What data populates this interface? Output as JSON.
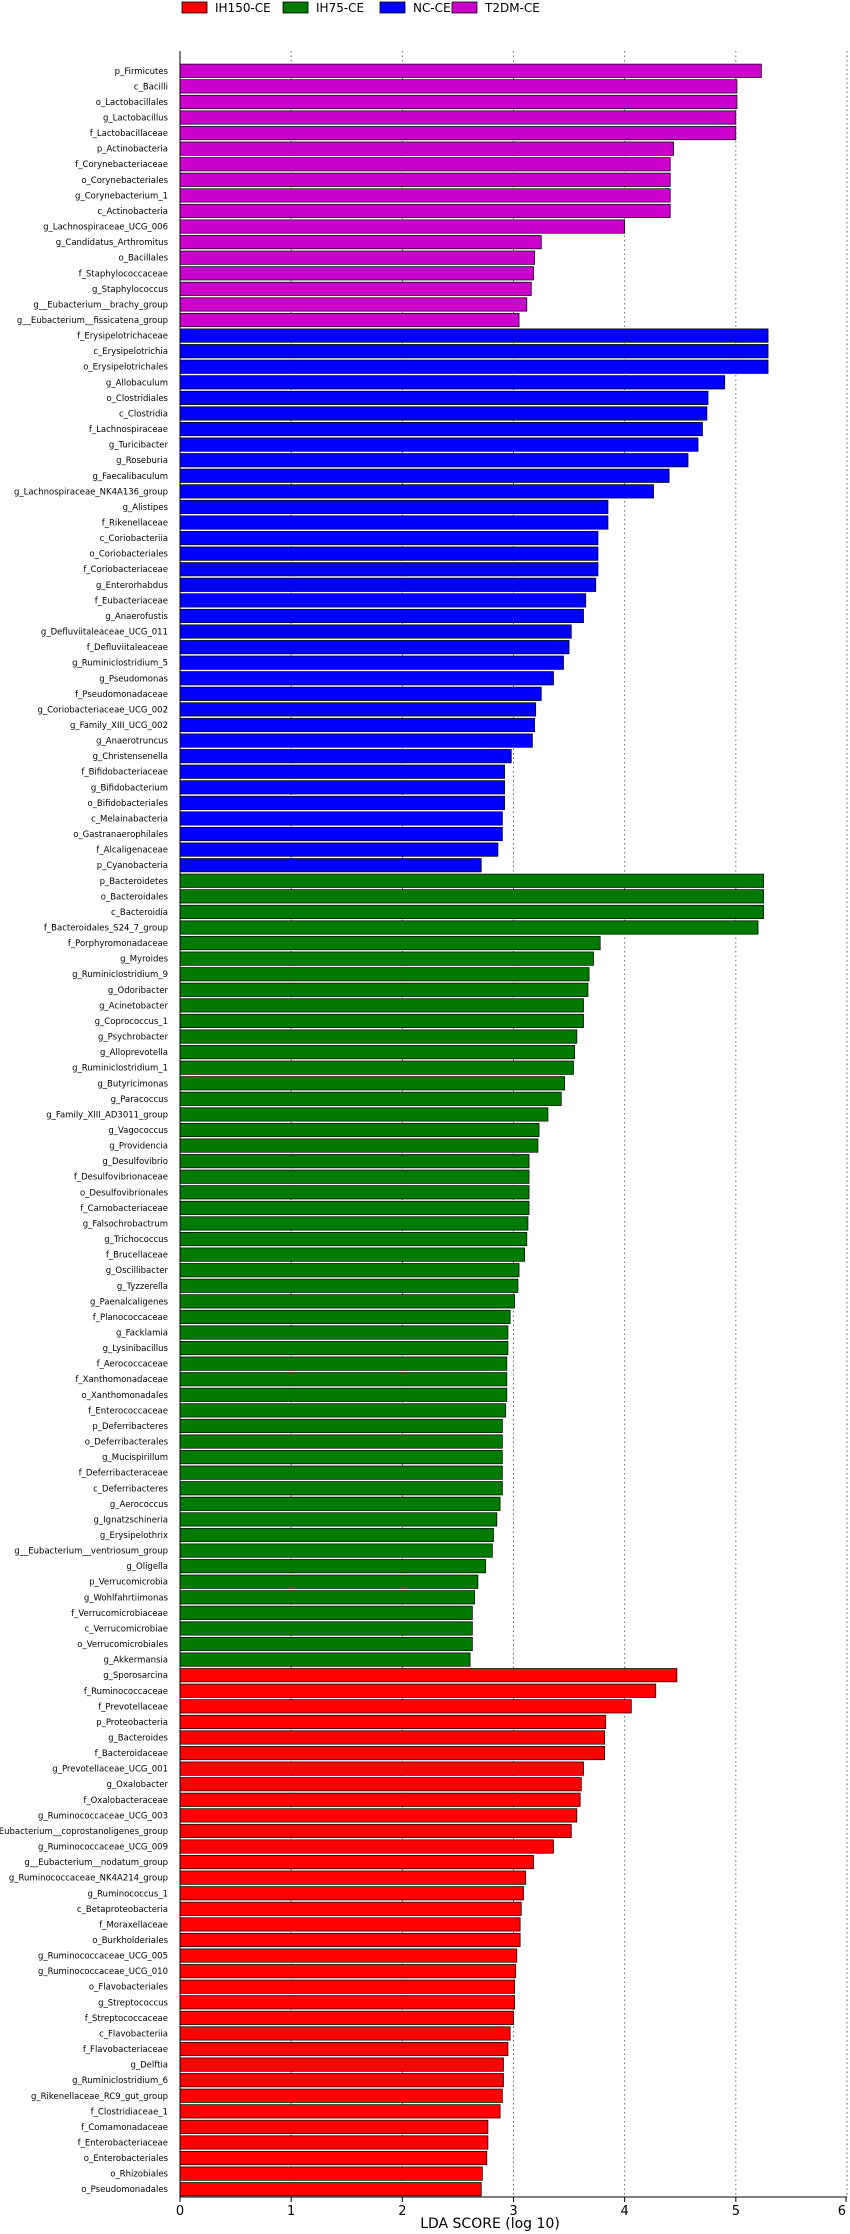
{
  "chart_data": {
    "type": "bar",
    "orientation": "horizontal",
    "xlabel": "LDA SCORE (log 10)",
    "xlim": [
      0,
      6
    ],
    "xticks": [
      "0",
      "1",
      "2",
      "3",
      "4",
      "5",
      "6"
    ],
    "grid": "vertical-dotted",
    "legend_position": "top",
    "legend": [
      {
        "name": "IH150-CE",
        "color": "#ff0000"
      },
      {
        "name": "IH75-CE",
        "color": "#007a00"
      },
      {
        "name": "NC-CE",
        "color": "#0000ff"
      },
      {
        "name": "T2DM-CE",
        "color": "#cc00cc"
      }
    ],
    "groups": [
      {
        "name": "T2DM-CE",
        "color": "#cc00cc",
        "bars": [
          {
            "label": "p_Firmicutes",
            "value": 5.23
          },
          {
            "label": "c_Bacilli",
            "value": 5.01
          },
          {
            "label": "o_Lactobacillales",
            "value": 5.01
          },
          {
            "label": "g_Lactobacillus",
            "value": 5.0
          },
          {
            "label": "f_Lactobacillaceae",
            "value": 5.0
          },
          {
            "label": "p_Actinobacteria",
            "value": 4.44
          },
          {
            "label": "f_Corynebacteriaceae",
            "value": 4.41
          },
          {
            "label": "o_Corynebacteriales",
            "value": 4.41
          },
          {
            "label": "g_Corynebacterium_1",
            "value": 4.41
          },
          {
            "label": "c_Actinobacteria",
            "value": 4.41
          },
          {
            "label": "g_Lachnospiraceae_UCG_006",
            "value": 4.0
          },
          {
            "label": "g_Candidatus_Arthromitus",
            "value": 3.25
          },
          {
            "label": "o_Bacillales",
            "value": 3.19
          },
          {
            "label": "f_Staphylococcaceae",
            "value": 3.18
          },
          {
            "label": "g_Staphylococcus",
            "value": 3.16
          },
          {
            "label": "g__Eubacterium__brachy_group",
            "value": 3.12
          },
          {
            "label": "g__Eubacterium__fissicatena_group",
            "value": 3.05
          }
        ]
      },
      {
        "name": "NC-CE",
        "color": "#0000ff",
        "bars": [
          {
            "label": "f_Erysipelotrichaceae",
            "value": 5.29
          },
          {
            "label": "c_Erysipelotrichia",
            "value": 5.29
          },
          {
            "label": "o_Erysipelotrichales",
            "value": 5.29
          },
          {
            "label": "g_Allobaculum",
            "value": 4.9
          },
          {
            "label": "o_Clostridiales",
            "value": 4.75
          },
          {
            "label": "c_Clostridia",
            "value": 4.74
          },
          {
            "label": "f_Lachnospiraceae",
            "value": 4.7
          },
          {
            "label": "g_Turicibacter",
            "value": 4.66
          },
          {
            "label": "g_Roseburia",
            "value": 4.57
          },
          {
            "label": "g_Faecalibaculum",
            "value": 4.4
          },
          {
            "label": "g_Lachnospiraceae_NK4A136_group",
            "value": 4.26
          },
          {
            "label": "g_Alistipes",
            "value": 3.85
          },
          {
            "label": "f_Rikenellaceae",
            "value": 3.85
          },
          {
            "label": "c_Coriobacteriia",
            "value": 3.76
          },
          {
            "label": "o_Coriobacteriales",
            "value": 3.76
          },
          {
            "label": "f_Coriobacteriaceae",
            "value": 3.76
          },
          {
            "label": "g_Enterorhabdus",
            "value": 3.74
          },
          {
            "label": "f_Eubacteriaceae",
            "value": 3.65
          },
          {
            "label": "g_Anaerofustis",
            "value": 3.63
          },
          {
            "label": "g_Defluviitaleaceae_UCG_011",
            "value": 3.52
          },
          {
            "label": "f_Defluviitaleaceae",
            "value": 3.5
          },
          {
            "label": "g_Ruminiclostridium_5",
            "value": 3.45
          },
          {
            "label": "g_Pseudomonas",
            "value": 3.36
          },
          {
            "label": "f_Pseudomonadaceae",
            "value": 3.25
          },
          {
            "label": "g_Coriobacteriaceae_UCG_002",
            "value": 3.2
          },
          {
            "label": "g_Family_XIII_UCG_002",
            "value": 3.19
          },
          {
            "label": "g_Anaerotruncus",
            "value": 3.17
          },
          {
            "label": "g_Christensenella",
            "value": 2.98
          },
          {
            "label": "f_Bifidobacteriaceae",
            "value": 2.92
          },
          {
            "label": "g_Bifidobacterium",
            "value": 2.92
          },
          {
            "label": "o_Bifidobacteriales",
            "value": 2.92
          },
          {
            "label": "c_Melainabacteria",
            "value": 2.9
          },
          {
            "label": "o_Gastranaerophilales",
            "value": 2.9
          },
          {
            "label": "f_Alcaligenaceae",
            "value": 2.86
          },
          {
            "label": "p_Cyanobacteria",
            "value": 2.71
          }
        ]
      },
      {
        "name": "IH75-CE",
        "color": "#007a00",
        "bars": [
          {
            "label": "p_Bacteroidetes",
            "value": 5.25
          },
          {
            "label": "o_Bacteroidales",
            "value": 5.25
          },
          {
            "label": "c_Bacteroidia",
            "value": 5.25
          },
          {
            "label": "f_Bacteroidales_S24_7_group",
            "value": 5.2
          },
          {
            "label": "f_Porphyromonadaceae",
            "value": 3.78
          },
          {
            "label": "g_Myroides",
            "value": 3.72
          },
          {
            "label": "g_Ruminiclostridium_9",
            "value": 3.68
          },
          {
            "label": "g_Odoribacter",
            "value": 3.67
          },
          {
            "label": "g_Acinetobacter",
            "value": 3.63
          },
          {
            "label": "g_Coprococcus_1",
            "value": 3.63
          },
          {
            "label": "g_Psychrobacter",
            "value": 3.57
          },
          {
            "label": "g_Alloprevotella",
            "value": 3.55
          },
          {
            "label": "g_Ruminiclostridium_1",
            "value": 3.54
          },
          {
            "label": "g_Butyricimonas",
            "value": 3.46
          },
          {
            "label": "g_Paracoccus",
            "value": 3.43
          },
          {
            "label": "g_Family_XIII_AD3011_group",
            "value": 3.31
          },
          {
            "label": "g_Vagococcus",
            "value": 3.23
          },
          {
            "label": "g_Providencia",
            "value": 3.22
          },
          {
            "label": "g_Desulfovibrio",
            "value": 3.14
          },
          {
            "label": "f_Desulfovibrionaceae",
            "value": 3.14
          },
          {
            "label": "o_Desulfovibrionales",
            "value": 3.14
          },
          {
            "label": "f_Carnobacteriaceae",
            "value": 3.14
          },
          {
            "label": "g_Falsochrobactrum",
            "value": 3.13
          },
          {
            "label": "g_Trichococcus",
            "value": 3.12
          },
          {
            "label": "f_Brucellaceae",
            "value": 3.1
          },
          {
            "label": "g_Oscillibacter",
            "value": 3.05
          },
          {
            "label": "g_Tyzzerella",
            "value": 3.04
          },
          {
            "label": "g_Paenalcaligenes",
            "value": 3.01
          },
          {
            "label": "f_Planococcaceae",
            "value": 2.97
          },
          {
            "label": "g_Facklamia",
            "value": 2.95
          },
          {
            "label": "g_Lysinibacillus",
            "value": 2.95
          },
          {
            "label": "f_Aerococcaceae",
            "value": 2.94
          },
          {
            "label": "f_Xanthomonadaceae",
            "value": 2.94
          },
          {
            "label": "o_Xanthomonadales",
            "value": 2.94
          },
          {
            "label": "f_Enterococcaceae",
            "value": 2.93
          },
          {
            "label": "p_Deferribacteres",
            "value": 2.9
          },
          {
            "label": "o_Deferribacterales",
            "value": 2.9
          },
          {
            "label": "g_Mucispirillum",
            "value": 2.9
          },
          {
            "label": "f_Deferribacteraceae",
            "value": 2.9
          },
          {
            "label": "c_Deferribacteres",
            "value": 2.9
          },
          {
            "label": "g_Aerococcus",
            "value": 2.88
          },
          {
            "label": "g_Ignatzschineria",
            "value": 2.85
          },
          {
            "label": "g_Erysipelothrix",
            "value": 2.82
          },
          {
            "label": "g__Eubacterium__ventriosum_group",
            "value": 2.81
          },
          {
            "label": "g_Oligella",
            "value": 2.75
          },
          {
            "label": "p_Verrucomicrobia",
            "value": 2.68
          },
          {
            "label": "g_Wohlfahrtiimonas",
            "value": 2.65
          },
          {
            "label": "f_Verrucomicrobiaceae",
            "value": 2.63
          },
          {
            "label": "c_Verrucomicrobiae",
            "value": 2.63
          },
          {
            "label": "o_Verrucomicrobiales",
            "value": 2.63
          },
          {
            "label": "g_Akkermansia",
            "value": 2.61
          }
        ]
      },
      {
        "name": "IH150-CE",
        "color": "#ff0000",
        "bars": [
          {
            "label": "g_Sporosarcina",
            "value": 4.47
          },
          {
            "label": "f_Ruminococcaceae",
            "value": 4.28
          },
          {
            "label": "f_Prevotellaceae",
            "value": 4.06
          },
          {
            "label": "p_Proteobacteria",
            "value": 3.83
          },
          {
            "label": "g_Bacteroides",
            "value": 3.82
          },
          {
            "label": "f_Bacteroidaceae",
            "value": 3.82
          },
          {
            "label": "g_Prevotellaceae_UCG_001",
            "value": 3.63
          },
          {
            "label": "g_Oxalobacter",
            "value": 3.61
          },
          {
            "label": "f_Oxalobacteraceae",
            "value": 3.6
          },
          {
            "label": "g_Ruminococcaceae_UCG_003",
            "value": 3.57
          },
          {
            "label": "g__Eubacterium__coprostanoligenes_group",
            "value": 3.52
          },
          {
            "label": "g_Ruminococcaceae_UCG_009",
            "value": 3.36
          },
          {
            "label": "g__Eubacterium__nodatum_group",
            "value": 3.18
          },
          {
            "label": "g_Ruminococcaceae_NK4A214_group",
            "value": 3.11
          },
          {
            "label": "g_Ruminococcus_1",
            "value": 3.09
          },
          {
            "label": "c_Betaproteobacteria",
            "value": 3.07
          },
          {
            "label": "f_Moraxellaceae",
            "value": 3.06
          },
          {
            "label": "o_Burkholderiales",
            "value": 3.06
          },
          {
            "label": "g_Ruminococcaceae_UCG_005",
            "value": 3.03
          },
          {
            "label": "g_Ruminococcaceae_UCG_010",
            "value": 3.02
          },
          {
            "label": "o_Flavobacteriales",
            "value": 3.01
          },
          {
            "label": "g_Streptococcus",
            "value": 3.01
          },
          {
            "label": "f_Streptococcaceae",
            "value": 3.0
          },
          {
            "label": "c_Flavobacteriia",
            "value": 2.97
          },
          {
            "label": "f_Flavobacteriaceae",
            "value": 2.95
          },
          {
            "label": "g_Delftia",
            "value": 2.91
          },
          {
            "label": "g_Ruminiclostridium_6",
            "value": 2.91
          },
          {
            "label": "g_Rikenellaceae_RC9_gut_group",
            "value": 2.9
          },
          {
            "label": "f_Clostridiaceae_1",
            "value": 2.88
          },
          {
            "label": "f_Comamonadaceae",
            "value": 2.77
          },
          {
            "label": "f_Enterobacteriaceae",
            "value": 2.77
          },
          {
            "label": "o_Enterobacteriales",
            "value": 2.76
          },
          {
            "label": "o_Rhizobiales",
            "value": 2.72
          },
          {
            "label": "o_Pseudomonadales",
            "value": 2.71
          }
        ]
      }
    ]
  }
}
